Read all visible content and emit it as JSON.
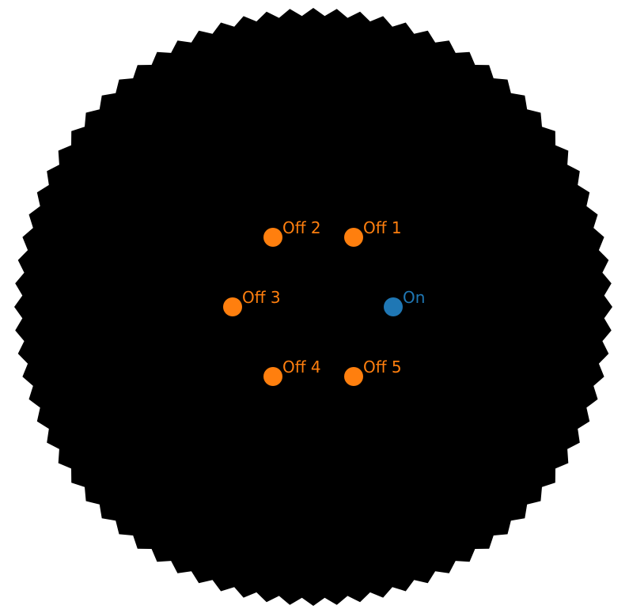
{
  "diagram": {
    "background_color": "#ffffff",
    "region_color": "#000000",
    "on_color": "#1f77b4",
    "off_color": "#ff7f0e",
    "points": [
      {
        "id": "on",
        "label": "On",
        "kind": "on"
      },
      {
        "id": "off-1",
        "label": "Off 1",
        "kind": "off"
      },
      {
        "id": "off-2",
        "label": "Off 2",
        "kind": "off"
      },
      {
        "id": "off-3",
        "label": "Off 3",
        "kind": "off"
      },
      {
        "id": "off-4",
        "label": "Off 4",
        "kind": "off"
      },
      {
        "id": "off-5",
        "label": "Off 5",
        "kind": "off"
      }
    ]
  }
}
